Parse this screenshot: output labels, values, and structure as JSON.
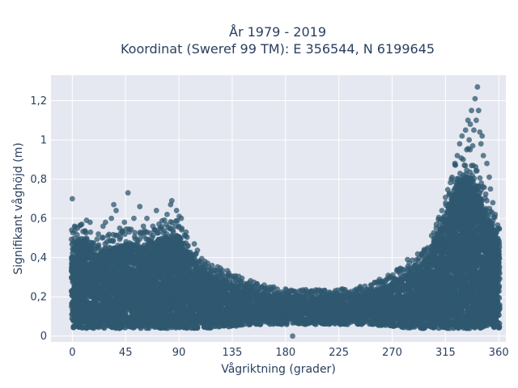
{
  "chart_data": {
    "type": "scatter",
    "title": "År 1979 - 2019",
    "subtitle": "Koordinat (Sweref 99 TM): E 356544, N 6199645",
    "xlabel": "Vågriktning (grader)",
    "ylabel": "Signifikant våghöjd (m)",
    "xlim": [
      -18,
      366
    ],
    "ylim": [
      -0.03,
      1.33
    ],
    "x_ticks": [
      0,
      45,
      90,
      135,
      180,
      225,
      270,
      315,
      360
    ],
    "x_tick_labels": [
      "0",
      "45",
      "90",
      "135",
      "180",
      "225",
      "270",
      "315",
      "360"
    ],
    "y_ticks": [
      0,
      0.2,
      0.4,
      0.6,
      0.8,
      1.0,
      1.2
    ],
    "y_tick_labels": [
      "0",
      "0,2",
      "0,4",
      "0,6",
      "0,8",
      "1",
      "1,2"
    ],
    "grid": true,
    "legend": "none",
    "marker_color": "#2f5870",
    "plot_bg": "#e5e8f0",
    "density_envelope": {
      "x": [
        0,
        10,
        20,
        30,
        45,
        60,
        75,
        90,
        100,
        115,
        135,
        160,
        180,
        200,
        225,
        250,
        270,
        285,
        300,
        315,
        325,
        335,
        340,
        350,
        360
      ],
      "y_max": [
        0.48,
        0.5,
        0.42,
        0.44,
        0.47,
        0.46,
        0.5,
        0.52,
        0.4,
        0.32,
        0.27,
        0.22,
        0.2,
        0.2,
        0.2,
        0.22,
        0.27,
        0.32,
        0.4,
        0.62,
        0.78,
        0.82,
        0.78,
        0.62,
        0.5
      ],
      "y_min": [
        0.04,
        0.04,
        0.04,
        0.04,
        0.04,
        0.04,
        0.04,
        0.04,
        0.04,
        0.04,
        0.05,
        0.06,
        0.06,
        0.06,
        0.06,
        0.06,
        0.05,
        0.04,
        0.04,
        0.04,
        0.04,
        0.04,
        0.04,
        0.04,
        0.04
      ]
    },
    "outliers": [
      {
        "x": 0,
        "y": 0.7
      },
      {
        "x": 2,
        "y": 0.56
      },
      {
        "x": 8,
        "y": 0.57
      },
      {
        "x": 12,
        "y": 0.59
      },
      {
        "x": 15,
        "y": 0.58
      },
      {
        "x": 22,
        "y": 0.52
      },
      {
        "x": 26,
        "y": 0.56
      },
      {
        "x": 28,
        "y": 0.58
      },
      {
        "x": 30,
        "y": 0.51
      },
      {
        "x": 33,
        "y": 0.6
      },
      {
        "x": 35,
        "y": 0.67
      },
      {
        "x": 37,
        "y": 0.64
      },
      {
        "x": 40,
        "y": 0.55
      },
      {
        "x": 44,
        "y": 0.58
      },
      {
        "x": 47,
        "y": 0.73
      },
      {
        "x": 52,
        "y": 0.6
      },
      {
        "x": 57,
        "y": 0.66
      },
      {
        "x": 60,
        "y": 0.56
      },
      {
        "x": 63,
        "y": 0.6
      },
      {
        "x": 68,
        "y": 0.56
      },
      {
        "x": 71,
        "y": 0.64
      },
      {
        "x": 74,
        "y": 0.55
      },
      {
        "x": 80,
        "y": 0.62
      },
      {
        "x": 83,
        "y": 0.67
      },
      {
        "x": 84,
        "y": 0.69
      },
      {
        "x": 88,
        "y": 0.64
      },
      {
        "x": 92,
        "y": 0.6
      },
      {
        "x": 96,
        "y": 0.53
      },
      {
        "x": 103,
        "y": 0.47
      },
      {
        "x": 112,
        "y": 0.38
      },
      {
        "x": 118,
        "y": 0.36
      },
      {
        "x": 125,
        "y": 0.33
      },
      {
        "x": 132,
        "y": 0.31
      },
      {
        "x": 142,
        "y": 0.28
      },
      {
        "x": 150,
        "y": 0.25
      },
      {
        "x": 162,
        "y": 0.26
      },
      {
        "x": 170,
        "y": 0.25
      },
      {
        "x": 180,
        "y": 0.24
      },
      {
        "x": 186,
        "y": 0.0
      },
      {
        "x": 193,
        "y": 0.23
      },
      {
        "x": 210,
        "y": 0.22
      },
      {
        "x": 228,
        "y": 0.24
      },
      {
        "x": 240,
        "y": 0.24
      },
      {
        "x": 252,
        "y": 0.26
      },
      {
        "x": 262,
        "y": 0.28
      },
      {
        "x": 276,
        "y": 0.33
      },
      {
        "x": 283,
        "y": 0.39
      },
      {
        "x": 289,
        "y": 0.36
      },
      {
        "x": 295,
        "y": 0.42
      },
      {
        "x": 300,
        "y": 0.45
      },
      {
        "x": 306,
        "y": 0.5
      },
      {
        "x": 310,
        "y": 0.56
      },
      {
        "x": 314,
        "y": 0.6
      },
      {
        "x": 318,
        "y": 0.72
      },
      {
        "x": 320,
        "y": 0.8
      },
      {
        "x": 323,
        "y": 0.88
      },
      {
        "x": 325,
        "y": 0.92
      },
      {
        "x": 327,
        "y": 0.98
      },
      {
        "x": 329,
        "y": 1.02
      },
      {
        "x": 330,
        "y": 0.9
      },
      {
        "x": 332,
        "y": 1.05
      },
      {
        "x": 333,
        "y": 0.95
      },
      {
        "x": 334,
        "y": 1.1
      },
      {
        "x": 335,
        "y": 1.0
      },
      {
        "x": 336,
        "y": 1.08
      },
      {
        "x": 337,
        "y": 1.15
      },
      {
        "x": 338,
        "y": 0.97
      },
      {
        "x": 339,
        "y": 1.05
      },
      {
        "x": 340,
        "y": 1.21
      },
      {
        "x": 341,
        "y": 1.1
      },
      {
        "x": 342,
        "y": 1.27
      },
      {
        "x": 343,
        "y": 1.15
      },
      {
        "x": 344,
        "y": 1.04
      },
      {
        "x": 345,
        "y": 0.98
      },
      {
        "x": 346,
        "y": 1.02
      },
      {
        "x": 347,
        "y": 0.92
      },
      {
        "x": 350,
        "y": 0.88
      },
      {
        "x": 352,
        "y": 0.81
      },
      {
        "x": 353,
        "y": 0.75
      },
      {
        "x": 355,
        "y": 0.68
      },
      {
        "x": 357,
        "y": 0.62
      },
      {
        "x": 359,
        "y": 0.55
      }
    ]
  }
}
